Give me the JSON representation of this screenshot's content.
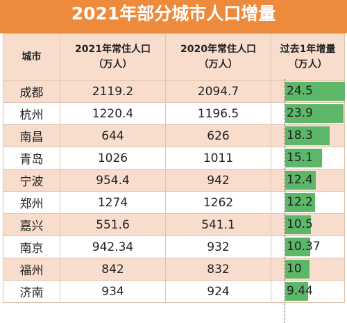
{
  "chart_data": {
    "type": "table",
    "title": "2021年部分城市人口增量",
    "columns": [
      "城市",
      "2021年常住人口（万人）",
      "2020年常住人口（万人）",
      "过去1年增量（万人）"
    ],
    "header": {
      "city": "城市",
      "pop2021": [
        "2021年常住人口",
        "（万人）"
      ],
      "pop2020": [
        "2020年常住人口",
        "（万人）"
      ],
      "increase": [
        "过去1年增量",
        "（万人）"
      ]
    },
    "rows": [
      {
        "city": "成都",
        "pop2021": "2119.2",
        "pop2020": "2094.7",
        "increase": "24.5"
      },
      {
        "city": "杭州",
        "pop2021": "1220.4",
        "pop2020": "1196.5",
        "increase": "23.9"
      },
      {
        "city": "南昌",
        "pop2021": "644",
        "pop2020": "626",
        "increase": "18.3"
      },
      {
        "city": "青岛",
        "pop2021": "1026",
        "pop2020": "1011",
        "increase": "15.1"
      },
      {
        "city": "宁波",
        "pop2021": "954.4",
        "pop2020": "942",
        "increase": "12.4"
      },
      {
        "city": "郑州",
        "pop2021": "1274",
        "pop2020": "1262",
        "increase": "12.2"
      },
      {
        "city": "嘉兴",
        "pop2021": "551.6",
        "pop2020": "541.1",
        "increase": "10.5"
      },
      {
        "city": "南京",
        "pop2021": "942.34",
        "pop2020": "932",
        "increase": "10.37"
      },
      {
        "city": "福州",
        "pop2021": "842",
        "pop2020": "832",
        "increase": "10"
      },
      {
        "city": "济南",
        "pop2021": "934",
        "pop2020": "924",
        "increase": "9.44"
      }
    ],
    "bar_color": "#5cb868",
    "header_color": "#ee8a3c"
  }
}
